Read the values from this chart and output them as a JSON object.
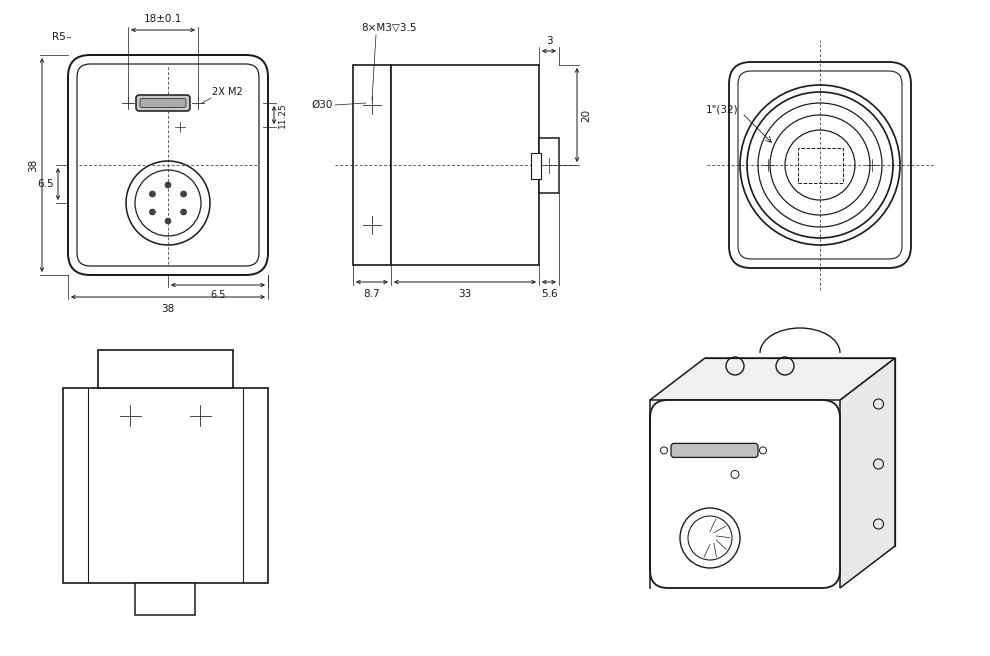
{
  "bg_color": "#ffffff",
  "line_color": "#1a1a1a",
  "text_color": "#1a1a1a",
  "lw": 1.1,
  "fs": 7.5,
  "annotations": {
    "dim_18": "18±0.1",
    "dim_38_top": "38",
    "dim_38_side": "38",
    "dim_6_5_v": "6.5",
    "dim_6_5_h": "6.5",
    "dim_11_25": "11.25",
    "dim_2xm2": "2X M2",
    "dim_r5": "R5",
    "dim_8xm3": "8×M3▽3.5",
    "dim_3": "3",
    "dim_30": "Ø30",
    "dim_20": "20",
    "dim_33": "33",
    "dim_8_7": "8.7",
    "dim_5_6": "5.6",
    "dim_1_32": "1\"(32)"
  }
}
